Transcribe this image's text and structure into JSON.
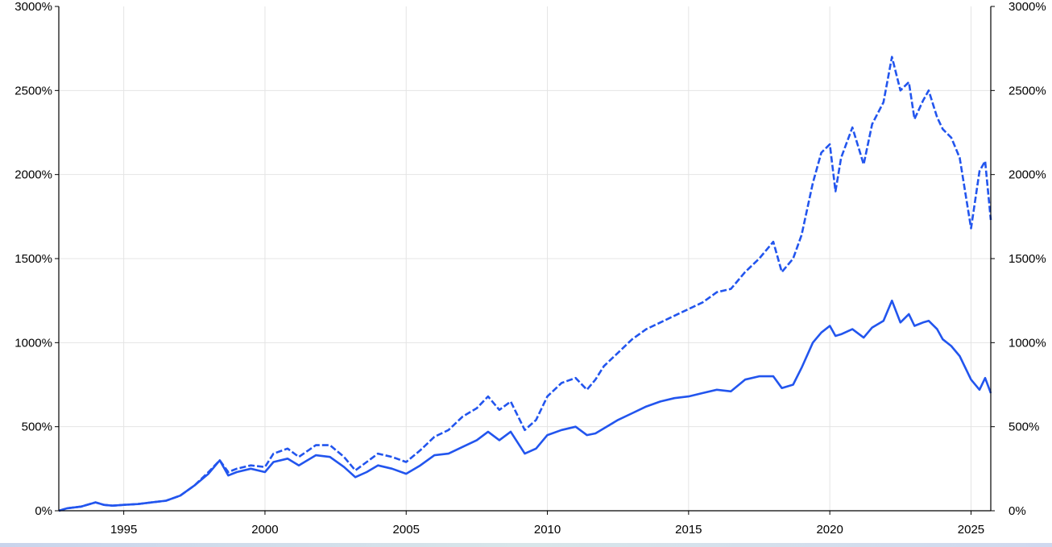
{
  "chart_data": {
    "type": "line",
    "title": "",
    "xlabel": "",
    "ylabel": "",
    "xlim": [
      1992.7,
      2025.7
    ],
    "ylim": [
      0,
      3000
    ],
    "grid": true,
    "x_ticks": [
      "1995",
      "2000",
      "2005",
      "2010",
      "2015",
      "2020",
      "2025"
    ],
    "y_ticks": [
      "0%",
      "500%",
      "1000%",
      "1500%",
      "2000%",
      "2500%",
      "3000%"
    ],
    "line_color": "#2255ee",
    "grid_color": "#e4e4e4",
    "series": [
      {
        "style": "solid",
        "x": [
          1992.7,
          1993.0,
          1993.5,
          1994.0,
          1994.3,
          1994.6,
          1995.0,
          1995.5,
          1996.0,
          1996.5,
          1997.0,
          1997.5,
          1998.0,
          1998.4,
          1998.7,
          1999.0,
          1999.5,
          2000.0,
          2000.3,
          2000.8,
          2001.2,
          2001.8,
          2002.3,
          2002.8,
          2003.2,
          2003.6,
          2004.0,
          2004.5,
          2005.0,
          2005.5,
          2006.0,
          2006.5,
          2007.0,
          2007.5,
          2007.9,
          2008.3,
          2008.7,
          2009.2,
          2009.6,
          2010.0,
          2010.5,
          2011.0,
          2011.4,
          2011.7,
          2012.0,
          2012.5,
          2013.0,
          2013.5,
          2014.0,
          2014.5,
          2015.0,
          2015.5,
          2016.0,
          2016.5,
          2017.0,
          2017.5,
          2018.0,
          2018.3,
          2018.7,
          2019.0,
          2019.4,
          2019.7,
          2020.0,
          2020.2,
          2020.4,
          2020.8,
          2021.2,
          2021.5,
          2021.9,
          2022.2,
          2022.5,
          2022.8,
          2023.0,
          2023.3,
          2023.5,
          2023.8,
          2024.0,
          2024.3,
          2024.6,
          2025.0,
          2025.3,
          2025.5,
          2025.7
        ],
        "y": [
          0,
          15,
          25,
          50,
          35,
          30,
          35,
          40,
          50,
          60,
          90,
          150,
          220,
          300,
          210,
          230,
          250,
          230,
          290,
          310,
          270,
          330,
          320,
          260,
          200,
          230,
          270,
          250,
          220,
          270,
          330,
          340,
          380,
          420,
          470,
          420,
          470,
          340,
          370,
          450,
          480,
          500,
          450,
          460,
          490,
          540,
          580,
          620,
          650,
          670,
          680,
          700,
          720,
          710,
          780,
          800,
          800,
          730,
          750,
          850,
          1000,
          1060,
          1100,
          1040,
          1050,
          1080,
          1030,
          1090,
          1130,
          1250,
          1120,
          1170,
          1100,
          1120,
          1130,
          1080,
          1020,
          980,
          920,
          780,
          720,
          790,
          700
        ]
      },
      {
        "style": "dashed",
        "x": [
          1992.7,
          1993.0,
          1993.5,
          1994.0,
          1994.3,
          1994.6,
          1995.0,
          1995.5,
          1996.0,
          1996.5,
          1997.0,
          1997.5,
          1998.0,
          1998.4,
          1998.7,
          1999.0,
          1999.5,
          2000.0,
          2000.3,
          2000.8,
          2001.2,
          2001.8,
          2002.3,
          2002.8,
          2003.2,
          2003.6,
          2004.0,
          2004.5,
          2005.0,
          2005.5,
          2006.0,
          2006.5,
          2007.0,
          2007.5,
          2007.9,
          2008.3,
          2008.7,
          2009.2,
          2009.6,
          2010.0,
          2010.5,
          2011.0,
          2011.4,
          2011.7,
          2012.0,
          2012.5,
          2013.0,
          2013.5,
          2014.0,
          2014.5,
          2015.0,
          2015.5,
          2016.0,
          2016.5,
          2017.0,
          2017.5,
          2018.0,
          2018.3,
          2018.7,
          2019.0,
          2019.4,
          2019.7,
          2020.0,
          2020.2,
          2020.4,
          2020.8,
          2021.2,
          2021.5,
          2021.9,
          2022.2,
          2022.5,
          2022.8,
          2023.0,
          2023.3,
          2023.5,
          2023.8,
          2024.0,
          2024.3,
          2024.6,
          2025.0,
          2025.3,
          2025.5,
          2025.7
        ],
        "y": [
          0,
          15,
          25,
          50,
          35,
          30,
          35,
          40,
          50,
          60,
          90,
          150,
          230,
          300,
          230,
          250,
          270,
          260,
          340,
          370,
          320,
          390,
          390,
          320,
          240,
          290,
          340,
          320,
          290,
          360,
          440,
          480,
          560,
          610,
          680,
          600,
          650,
          480,
          540,
          680,
          760,
          790,
          720,
          780,
          860,
          940,
          1020,
          1080,
          1120,
          1160,
          1200,
          1240,
          1300,
          1320,
          1420,
          1500,
          1600,
          1420,
          1500,
          1640,
          1950,
          2130,
          2180,
          1900,
          2100,
          2280,
          2060,
          2300,
          2430,
          2700,
          2500,
          2550,
          2330,
          2440,
          2500,
          2340,
          2270,
          2220,
          2100,
          1680,
          2020,
          2080,
          1730
        ]
      }
    ]
  }
}
